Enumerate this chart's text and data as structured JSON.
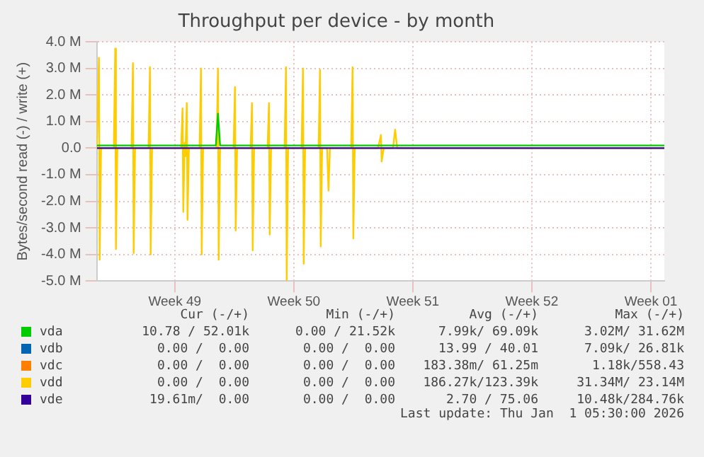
{
  "chart_data": {
    "type": "line",
    "title": "Throughput per device - by month",
    "ylabel": "Bytes/second read (-) / write (+)",
    "xlim": [
      "2025-11-29T22:00",
      "2026-01-02T07:00"
    ],
    "xticks": [
      {
        "value": "2025-12-04T12:00",
        "label": "Week 49"
      },
      {
        "value": "2025-12-11T12:00",
        "label": "Week 50"
      },
      {
        "value": "2025-12-18T12:00",
        "label": "Week 51"
      },
      {
        "value": "2025-12-25T12:00",
        "label": "Week 52"
      },
      {
        "value": "2026-01-01T12:00",
        "label": "Week 01"
      }
    ],
    "ylim": [
      -5,
      4
    ],
    "yticks": [
      {
        "value": -5,
        "label": "-5.0 M"
      },
      {
        "value": -4,
        "label": "-4.0 M"
      },
      {
        "value": -3,
        "label": "-3.0 M"
      },
      {
        "value": -2,
        "label": "-2.0 M"
      },
      {
        "value": -1,
        "label": "-1.0 M"
      },
      {
        "value": 0,
        "label": "0.0"
      },
      {
        "value": 1,
        "label": "1.0 M"
      },
      {
        "value": 2,
        "label": "2.0 M"
      },
      {
        "value": 3,
        "label": "3.0 M"
      },
      {
        "value": 4,
        "label": "4.0 M"
      }
    ],
    "grid": true,
    "line_style": "solid",
    "marker": "none",
    "legend": "bottom",
    "series": [
      {
        "name": "vda",
        "color": "#00cc00",
        "x": [
          "2025-11-29T22:00",
          "2025-12-06T22:00",
          "2025-12-07T01:00",
          "2025-12-07T04:00",
          "2026-01-02T07:00"
        ],
        "values": [
          0.1,
          0.1,
          1.3,
          0.1,
          0.1
        ]
      },
      {
        "name": "vdb",
        "color": "#0066b3"
      },
      {
        "name": "vdc",
        "color": "#ff8000"
      },
      {
        "name": "vdd",
        "color": "#ffcc00",
        "x": [
          "2025-11-29T22:00",
          "2025-11-30T01:00",
          "2025-11-30T02:00",
          "2025-11-30T04:00",
          "2025-11-30T22:00",
          "2025-12-01T00:00",
          "2025-12-01T01:00",
          "2025-12-01T03:00",
          "2025-12-01T23:00",
          "2025-12-02T01:00",
          "2025-12-02T02:00",
          "2025-12-02T04:00",
          "2025-12-02T23:00",
          "2025-12-03T01:00",
          "2025-12-03T02:00",
          "2025-12-03T04:00",
          "2025-12-04T21:00",
          "2025-12-04T23:00",
          "2025-12-05T00:00",
          "2025-12-05T02:00",
          "2025-12-05T03:00",
          "2025-12-05T05:00",
          "2025-12-05T06:00",
          "2025-12-05T08:00",
          "2025-12-05T23:00",
          "2025-12-06T01:00",
          "2025-12-06T02:00",
          "2025-12-06T04:00",
          "2025-12-06T23:00",
          "2025-12-07T01:00",
          "2025-12-07T02:00",
          "2025-12-07T04:00",
          "2025-12-07T23:00",
          "2025-12-08T01:00",
          "2025-12-08T02:00",
          "2025-12-08T04:00",
          "2025-12-08T23:00",
          "2025-12-09T01:00",
          "2025-12-09T02:00",
          "2025-12-09T04:00",
          "2025-12-09T23:00",
          "2025-12-10T01:00",
          "2025-12-10T02:00",
          "2025-12-10T04:00",
          "2025-12-10T23:00",
          "2025-12-11T01:00",
          "2025-12-11T02:00",
          "2025-12-11T04:00",
          "2025-12-11T23:00",
          "2025-12-12T01:00",
          "2025-12-12T02:00",
          "2025-12-12T04:00",
          "2025-12-12T23:00",
          "2025-12-13T01:00",
          "2025-12-13T02:00",
          "2025-12-13T04:00",
          "2025-12-13T11:00",
          "2025-12-13T13:00",
          "2025-12-13T15:00",
          "2025-12-14T21:00",
          "2025-12-14T23:00",
          "2025-12-15T00:00",
          "2025-12-15T02:00",
          "2025-12-16T11:00",
          "2025-12-16T15:00",
          "2025-12-16T16:00",
          "2025-12-16T19:00",
          "2025-12-17T08:00",
          "2025-12-17T11:00",
          "2025-12-17T14:00",
          "2026-01-02T07:00"
        ],
        "values": [
          0,
          3.4,
          -4.2,
          0,
          0,
          3.75,
          -3.8,
          0,
          0,
          3.2,
          -3.95,
          0,
          0,
          3.05,
          -4.0,
          0,
          0,
          1.5,
          -2.4,
          0.2,
          -0.3,
          1.7,
          -2.7,
          0,
          0,
          3.0,
          -4.0,
          0,
          0,
          3.0,
          -4.2,
          0,
          0,
          2.3,
          -3.1,
          0,
          0,
          1.7,
          -3.85,
          0,
          0,
          1.7,
          -3.25,
          0,
          0,
          3.05,
          -5.0,
          0,
          0,
          3.0,
          -4.35,
          0,
          0,
          2.95,
          -3.7,
          0,
          0,
          -1.6,
          0,
          0,
          3.05,
          -3.4,
          0,
          0,
          0.5,
          -0.5,
          0,
          0,
          0.7,
          0,
          0
        ]
      },
      {
        "name": "vde",
        "color": "#330099",
        "x": [
          "2025-11-29T22:00",
          "2026-01-02T07:00"
        ],
        "values": [
          0,
          0
        ]
      }
    ],
    "annotations": [
      "Cur (-/+)",
      "Min (-/+)",
      "Avg (-/+)",
      "Max (-/+)",
      "10.78 / 52.01k",
      "0.00 / 21.52k",
      "7.99k/ 69.09k",
      "3.02M/ 31.62M",
      "0.00 /  0.00",
      "0.00 /  0.00",
      "13.99 / 40.01",
      "7.09k/ 26.81k",
      "0.00 /  0.00",
      "0.00 /  0.00",
      "183.38m/ 61.25m",
      "1.18k/558.43",
      "0.00 /  0.00",
      "0.00 /  0.00",
      "186.27k/123.39k",
      "31.34M/ 23.14M",
      "19.61m/  0.00",
      "0.00 /  0.00",
      "2.70 / 75.06",
      "10.48k/284.76k",
      "Last update: Thu Jan  1 05:30:00 2026"
    ]
  }
}
